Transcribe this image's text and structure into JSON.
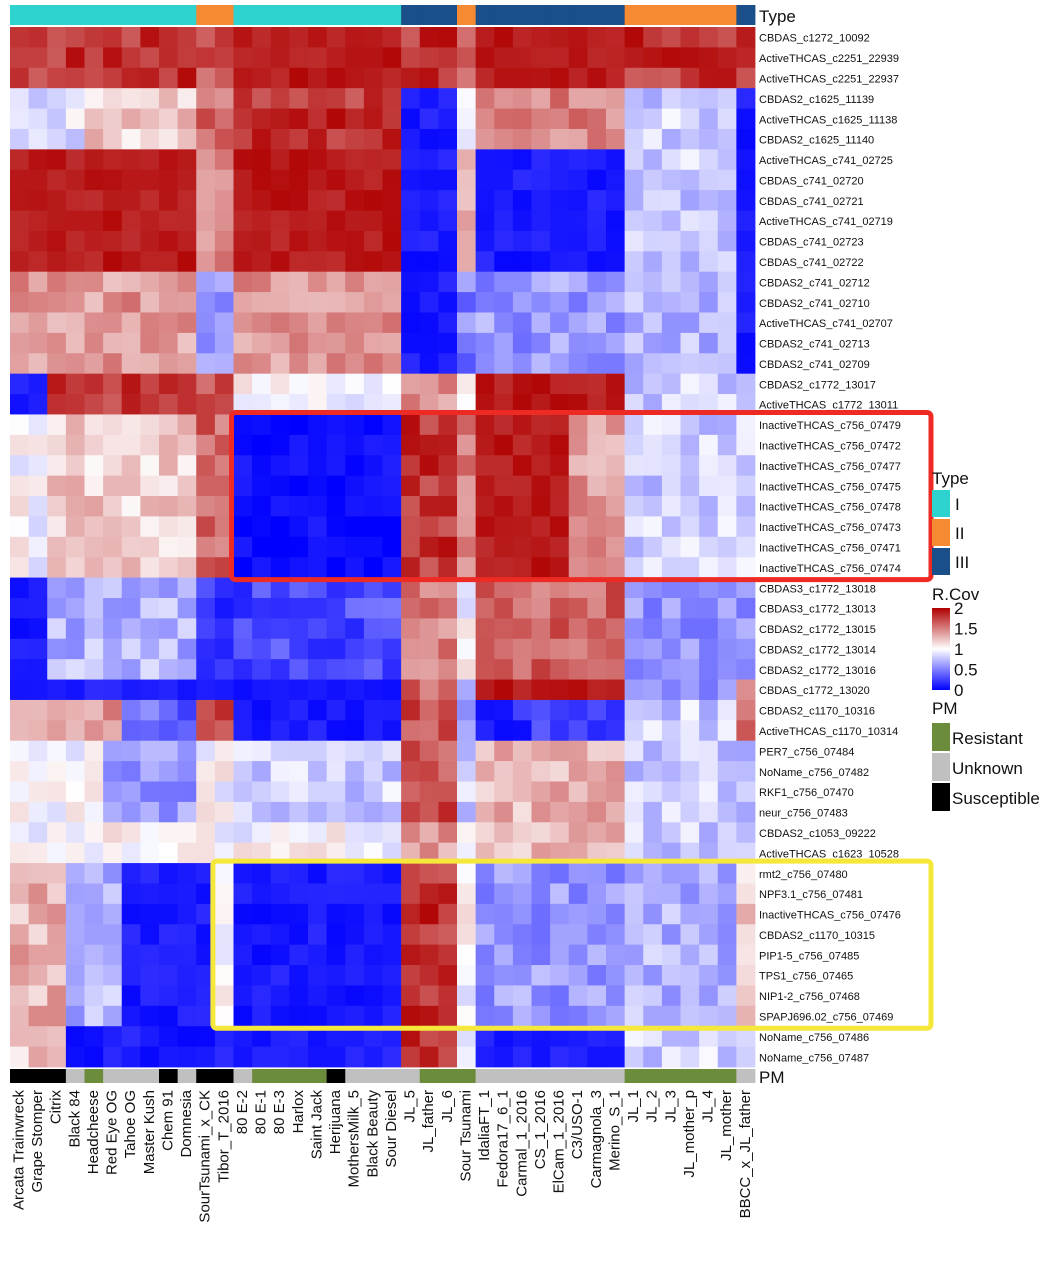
{
  "chart_data": {
    "type": "heatmap",
    "title": "",
    "type_track_label": "Type",
    "pm_track_label": "PM",
    "columns": [
      "Arcata Trainwreck",
      "Grape Stomper",
      "Citrix",
      "Black 84",
      "Headcheese",
      "Red Eye OG",
      "Tahoe OG",
      "Master Kush",
      "Chem 91",
      "Domnesia",
      "SourTsunami_x_CK",
      "Tibor_T_2016",
      "80 E-2",
      "80 E-1",
      "80 E-3",
      "Harlox",
      "Saint Jack",
      "Herijuana",
      "MothersMilk_5",
      "Black Beauty",
      "Sour Diesel",
      "JL_5",
      "JL_father",
      "JL_6",
      "Sour Tsunami",
      "IdaliaFT_1",
      "Fedora17_6_1",
      "Carmal_1_2016",
      "CS_1_2016",
      "ElCam_1_2016",
      "C3/USO-1",
      "Carmagnola_3",
      "Merino_S_1",
      "JL_1",
      "JL_2",
      "JL_3",
      "JL_mother_p",
      "JL_4",
      "JL_mother",
      "BBCC_x_JL_father"
    ],
    "rows": [
      "CBDAS_c1272_10092",
      "ActiveTHCAS_c2251_22939",
      "ActiveTHCAS_c2251_22937",
      "CBDAS2_c1625_11139",
      "ActiveTHCAS_c1625_11138",
      "CBDAS2_c1625_11140",
      "ActiveTHCAS_c741_02725",
      "CBDAS_c741_02720",
      "CBDAS_c741_02721",
      "ActiveTHCAS_c741_02719",
      "CBDAS_c741_02723",
      "CBDAS_c741_02722",
      "CBDAS2_c741_02712",
      "CBDAS2_c741_02710",
      "ActiveTHCAS_c741_02707",
      "CBDAS2_c741_02713",
      "CBDAS2_c741_02709",
      "CBDAS2_c1772_13017",
      "ActiveTHCAS_c1772_13011",
      "InactiveTHCAS_c756_07479",
      "InactiveTHCAS_c756_07472",
      "InactiveTHCAS_c756_07477",
      "InactiveTHCAS_c756_07475",
      "InactiveTHCAS_c756_07478",
      "InactiveTHCAS_c756_07473",
      "InactiveTHCAS_c756_07471",
      "InactiveTHCAS_c756_07474",
      "CBDAS3_c1772_13018",
      "CBDAS3_c1772_13013",
      "CBDAS2_c1772_13015",
      "CBDAS2_c1772_13014",
      "CBDAS2_c1772_13016",
      "CBDAS_c1772_13020",
      "CBDAS2_c1170_10316",
      "ActiveTHCAS_c1170_10314",
      "PER7_c756_07484",
      "NoName_c756_07482",
      "RKF1_c756_07470",
      "neur_c756_07483",
      "CBDAS2_c1053_09222",
      "ActiveTHCAS_c1623_10528",
      "rmt2_c756_07480",
      "NPF3.1_c756_07481",
      "InactiveTHCAS_c756_07476",
      "CBDAS2_c1170_10315",
      "PIP1-5_c756_07485",
      "TPS1_c756_07465",
      "NIP1-2_c756_07468",
      "SPAPJ696.02_c756_07469",
      "NoName_c756_07486",
      "NoName_c756_07487"
    ],
    "column_type": [
      "I",
      "I",
      "I",
      "I",
      "I",
      "I",
      "I",
      "I",
      "I",
      "I",
      "II",
      "II",
      "I",
      "I",
      "I",
      "I",
      "I",
      "I",
      "I",
      "I",
      "I",
      "III",
      "III",
      "III",
      "II",
      "III",
      "III",
      "III",
      "III",
      "III",
      "III",
      "III",
      "III",
      "II",
      "II",
      "II",
      "II",
      "II",
      "II",
      "III"
    ],
    "column_pm": [
      "Susceptible",
      "Susceptible",
      "Susceptible",
      "Unknown",
      "Resistant",
      "Unknown",
      "Unknown",
      "Unknown",
      "Susceptible",
      "Unknown",
      "Susceptible",
      "Susceptible",
      "Unknown",
      "Resistant",
      "Resistant",
      "Resistant",
      "Resistant",
      "Susceptible",
      "Unknown",
      "Unknown",
      "Unknown",
      "Unknown",
      "Resistant",
      "Resistant",
      "Resistant",
      "Unknown",
      "Unknown",
      "Unknown",
      "Unknown",
      "Unknown",
      "Unknown",
      "Unknown",
      "Unknown",
      "Resistant",
      "Resistant",
      "Resistant",
      "Resistant",
      "Resistant",
      "Resistant",
      "Unknown"
    ],
    "block_values": {
      "row_groups": [
        {
          "rows": [
            0,
            2
          ],
          "cols": [
            [
              0,
              10,
              1.8
            ],
            [
              10,
              12,
              1.7
            ],
            [
              12,
              21,
              1.9
            ],
            [
              21,
              24,
              1.8
            ],
            [
              24,
              25,
              1.7
            ],
            [
              25,
              33,
              1.9
            ],
            [
              33,
              40,
              1.8
            ]
          ]
        },
        {
          "rows": [
            3,
            5
          ],
          "cols": [
            [
              0,
              4,
              0.9
            ],
            [
              4,
              10,
              1.2
            ],
            [
              10,
              12,
              1.6
            ],
            [
              12,
              21,
              1.8
            ],
            [
              21,
              24,
              0.1
            ],
            [
              24,
              25,
              0.9
            ],
            [
              25,
              33,
              1.5
            ],
            [
              33,
              39,
              0.8
            ],
            [
              39,
              40,
              0.1
            ]
          ]
        },
        {
          "rows": [
            6,
            11
          ],
          "cols": [
            [
              0,
              10,
              1.9
            ],
            [
              10,
              12,
              1.5
            ],
            [
              12,
              21,
              1.9
            ],
            [
              21,
              24,
              0.1
            ],
            [
              24,
              25,
              1.4
            ],
            [
              25,
              33,
              0.1
            ],
            [
              33,
              39,
              0.8
            ],
            [
              39,
              40,
              0.1
            ]
          ]
        },
        {
          "rows": [
            12,
            16
          ],
          "cols": [
            [
              0,
              10,
              1.4
            ],
            [
              10,
              12,
              0.6
            ],
            [
              12,
              21,
              1.4
            ],
            [
              21,
              24,
              0.1
            ],
            [
              24,
              25,
              0.5
            ],
            [
              25,
              33,
              0.6
            ],
            [
              33,
              39,
              0.7
            ],
            [
              39,
              40,
              0.1
            ]
          ]
        },
        {
          "rows": [
            17,
            18
          ],
          "cols": [
            [
              0,
              2,
              0.1
            ],
            [
              2,
              10,
              1.8
            ],
            [
              10,
              12,
              1.7
            ],
            [
              12,
              21,
              1.0
            ],
            [
              21,
              24,
              1.4
            ],
            [
              24,
              25,
              1.0
            ],
            [
              25,
              33,
              1.9
            ],
            [
              33,
              40,
              0.8
            ]
          ]
        },
        {
          "rows": [
            19,
            26
          ],
          "cols": [
            [
              0,
              2,
              1.0
            ],
            [
              2,
              10,
              1.2
            ],
            [
              10,
              12,
              1.6
            ],
            [
              12,
              21,
              0.05
            ],
            [
              21,
              24,
              1.8
            ],
            [
              24,
              25,
              1.5
            ],
            [
              25,
              30,
              1.9
            ],
            [
              30,
              33,
              1.4
            ],
            [
              33,
              40,
              0.8
            ]
          ]
        },
        {
          "rows": [
            27,
            31
          ],
          "cols": [
            [
              0,
              2,
              0.1
            ],
            [
              2,
              10,
              0.7
            ],
            [
              10,
              12,
              0.2
            ],
            [
              12,
              21,
              0.3
            ],
            [
              21,
              24,
              1.5
            ],
            [
              24,
              25,
              1.0
            ],
            [
              25,
              33,
              1.6
            ],
            [
              33,
              40,
              0.6
            ]
          ]
        },
        {
          "rows": [
            32,
            32
          ],
          "cols": [
            [
              0,
              21,
              0.1
            ],
            [
              21,
              24,
              1.6
            ],
            [
              24,
              25,
              0.5
            ],
            [
              25,
              33,
              1.9
            ],
            [
              33,
              39,
              0.6
            ],
            [
              39,
              40,
              1.5
            ]
          ]
        },
        {
          "rows": [
            33,
            34
          ],
          "cols": [
            [
              0,
              6,
              1.4
            ],
            [
              6,
              10,
              0.4
            ],
            [
              10,
              12,
              1.8
            ],
            [
              12,
              21,
              0.1
            ],
            [
              21,
              24,
              1.7
            ],
            [
              24,
              25,
              0.5
            ],
            [
              25,
              33,
              0.2
            ],
            [
              33,
              39,
              0.8
            ],
            [
              39,
              40,
              1.5
            ]
          ]
        },
        {
          "rows": [
            35,
            38
          ],
          "cols": [
            [
              0,
              5,
              1.0
            ],
            [
              5,
              10,
              0.6
            ],
            [
              10,
              12,
              1.0
            ],
            [
              12,
              21,
              0.8
            ],
            [
              21,
              24,
              1.7
            ],
            [
              24,
              25,
              0.8
            ],
            [
              25,
              33,
              1.3
            ],
            [
              33,
              39,
              0.8
            ],
            [
              39,
              40,
              0.7
            ]
          ]
        },
        {
          "rows": [
            39,
            40
          ],
          "cols": [
            [
              0,
              21,
              1.0
            ],
            [
              21,
              24,
              1.4
            ],
            [
              24,
              25,
              1.0
            ],
            [
              25,
              33,
              1.3
            ],
            [
              33,
              40,
              0.8
            ]
          ]
        },
        {
          "rows": [
            41,
            48
          ],
          "cols": [
            [
              0,
              3,
              1.3
            ],
            [
              3,
              6,
              0.7
            ],
            [
              6,
              11,
              0.1
            ],
            [
              11,
              12,
              1.0
            ],
            [
              12,
              21,
              0.1
            ],
            [
              21,
              24,
              1.8
            ],
            [
              24,
              25,
              1.0
            ],
            [
              25,
              33,
              0.6
            ],
            [
              33,
              39,
              0.7
            ],
            [
              39,
              40,
              1.2
            ]
          ]
        },
        {
          "rows": [
            49,
            50
          ],
          "cols": [
            [
              0,
              3,
              1.2
            ],
            [
              3,
              21,
              0.1
            ],
            [
              21,
              24,
              1.8
            ],
            [
              24,
              25,
              0.9
            ],
            [
              25,
              33,
              0.1
            ],
            [
              33,
              40,
              0.8
            ]
          ]
        }
      ]
    },
    "type_legend": {
      "title": "Type",
      "entries": [
        {
          "label": "I",
          "color": "#2ed3cf"
        },
        {
          "label": "II",
          "color": "#f58a33"
        },
        {
          "label": "III",
          "color": "#1a4f8a"
        }
      ]
    },
    "color_scale": {
      "title": "R.Cov",
      "ticks": [
        "2",
        "1.5",
        "1",
        "0.5",
        "0"
      ],
      "min": 0,
      "max": 2,
      "colors": [
        "#0000ff",
        "#ffffff",
        "#b00000"
      ]
    },
    "pm_legend": {
      "title": "PM",
      "entries": [
        {
          "label": "Resistant",
          "color": "#6b8c3a"
        },
        {
          "label": "Unknown",
          "color": "#c0c0c0"
        },
        {
          "label": "Susceptible",
          "color": "#000000"
        }
      ]
    },
    "highlight_boxes": [
      {
        "color": "#ee2a24",
        "first_row": 19,
        "last_row": 26,
        "first_col": 12,
        "last_col": 39
      },
      {
        "color": "#f5e83a",
        "first_row": 41,
        "last_row": 48,
        "first_col": 11,
        "last_col": 39
      }
    ]
  }
}
